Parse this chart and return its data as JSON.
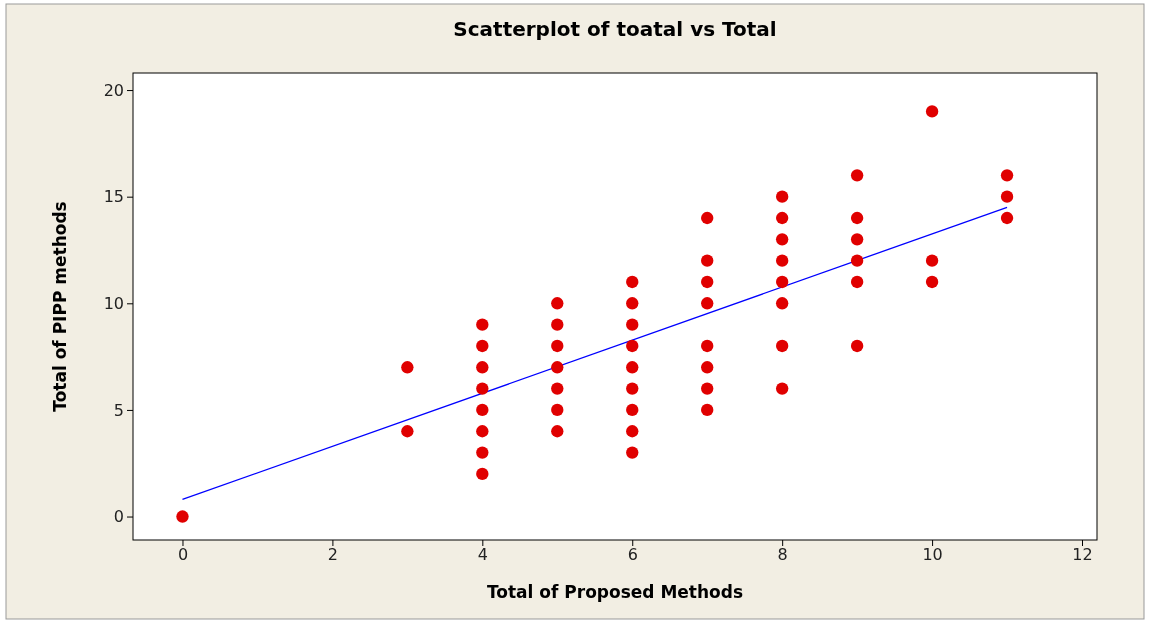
{
  "chart_data": {
    "type": "scatter",
    "title": "Scatterplot of toatal vs Total",
    "xlabel": "Total of Proposed Methods",
    "ylabel": "Total of PIPP methods",
    "xlim": [
      -0.66,
      12.2
    ],
    "ylim": [
      -1.1,
      20.8
    ],
    "xticks": [
      0,
      2,
      4,
      6,
      8,
      10,
      12
    ],
    "yticks": [
      0,
      5,
      10,
      15,
      20
    ],
    "grid": false,
    "marker": "circle",
    "series": [
      {
        "color": "#e00000",
        "x": [
          0,
          3,
          3,
          4,
          4,
          4,
          4,
          4,
          4,
          4,
          4,
          5,
          5,
          5,
          5,
          5,
          5,
          5,
          6,
          6,
          6,
          6,
          6,
          6,
          6,
          6,
          6,
          7,
          7,
          7,
          7,
          7,
          7,
          7,
          7,
          8,
          8,
          8,
          8,
          8,
          8,
          8,
          8,
          9,
          9,
          9,
          9,
          9,
          9,
          10,
          10,
          10,
          11,
          11,
          11
        ],
        "values": [
          0,
          7,
          4,
          9,
          8,
          7,
          6,
          5,
          4,
          3,
          2,
          10,
          9,
          8,
          7,
          6,
          5,
          4,
          11,
          10,
          9,
          8,
          7,
          6,
          5,
          4,
          3,
          14,
          12,
          11,
          10,
          8,
          7,
          6,
          5,
          15,
          14,
          13,
          12,
          11,
          10,
          8,
          6,
          16,
          14,
          13,
          12,
          11,
          8,
          19,
          12,
          11,
          16,
          15,
          14
        ]
      },
      {
        "type": "line",
        "color": "#0000ff",
        "marker": "none",
        "line_style": "solid",
        "x": [
          0,
          11
        ],
        "values": [
          0.8,
          14.5
        ]
      }
    ]
  }
}
